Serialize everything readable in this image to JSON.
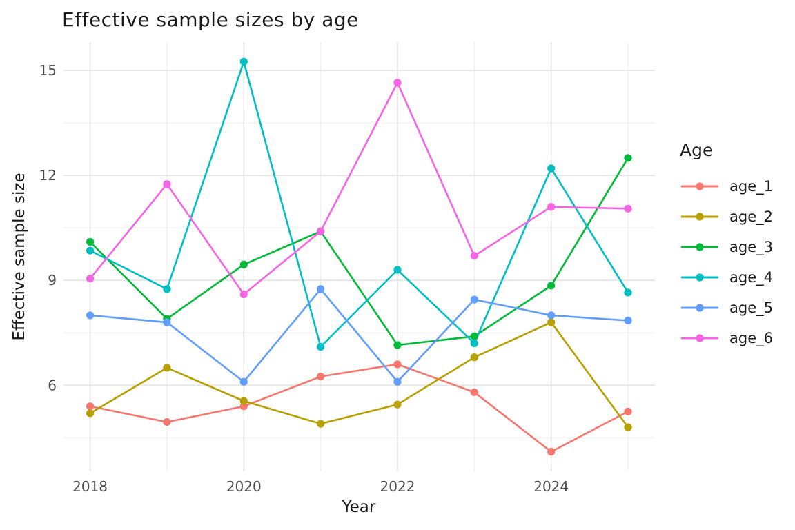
{
  "chart_data": {
    "type": "line",
    "title": "Effective sample sizes by age",
    "xlabel": "Year",
    "ylabel": "Effective sample size",
    "legend_title": "Age",
    "legend_position": "right",
    "grid": true,
    "background": "#ffffff",
    "grid_major_color": "#e4e4e4",
    "grid_minor_color": "#efefef",
    "tick_label_color": "#4d4d4d",
    "x": [
      2018,
      2019,
      2020,
      2021,
      2022,
      2023,
      2024,
      2025
    ],
    "x_ticks": [
      "2018",
      "2020",
      "2022",
      "2024"
    ],
    "x_tick_values": [
      2018,
      2020,
      2022,
      2024
    ],
    "x_minor_values": [
      2019,
      2021,
      2023,
      2025
    ],
    "y_ticks": [
      "6",
      "9",
      "12",
      "15"
    ],
    "y_tick_values": [
      6,
      9,
      12,
      15
    ],
    "y_minor_values": [
      4.5,
      7.5,
      10.5,
      13.5
    ],
    "xlim": [
      2017.65,
      2025.35
    ],
    "ylim": [
      3.54,
      15.81
    ],
    "series": [
      {
        "name": "age_1",
        "color": "#F8766D",
        "values": [
          5.4,
          4.95,
          5.4,
          6.25,
          6.6,
          5.8,
          4.1,
          5.25
        ]
      },
      {
        "name": "age_2",
        "color": "#B79F00",
        "values": [
          5.2,
          6.5,
          5.55,
          4.9,
          5.45,
          6.8,
          7.8,
          4.8
        ]
      },
      {
        "name": "age_3",
        "color": "#00BA38",
        "values": [
          10.1,
          7.9,
          9.45,
          10.4,
          7.15,
          7.4,
          8.85,
          12.5
        ]
      },
      {
        "name": "age_4",
        "color": "#00BFC4",
        "values": [
          9.85,
          8.75,
          15.25,
          7.1,
          9.3,
          7.2,
          12.2,
          8.65
        ]
      },
      {
        "name": "age_5",
        "color": "#619CFF",
        "values": [
          8.0,
          7.8,
          6.1,
          8.75,
          6.1,
          8.45,
          8.0,
          7.85
        ]
      },
      {
        "name": "age_6",
        "color": "#F564E3",
        "values": [
          9.05,
          11.75,
          8.6,
          10.4,
          14.65,
          9.7,
          11.1,
          11.05
        ]
      }
    ]
  }
}
